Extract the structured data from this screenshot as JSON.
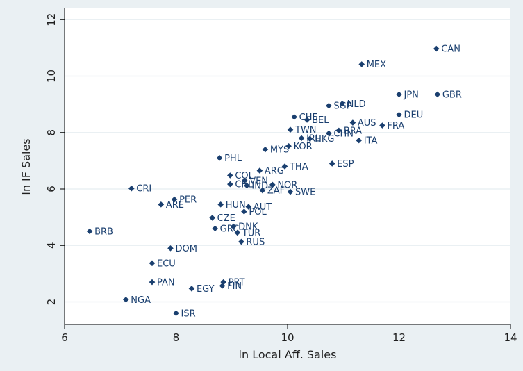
{
  "chart_data": {
    "type": "scatter",
    "xlabel": "ln Local Aff. Sales",
    "ylabel": "ln IF Sales",
    "xlim": [
      6,
      14
    ],
    "ylim": [
      1.2,
      12.4
    ],
    "xticks": [
      "6",
      "8",
      "10",
      "12",
      "14"
    ],
    "yticks": [
      "2",
      "4",
      "6",
      "8",
      "10",
      "12"
    ],
    "grid": "horizontal",
    "colors": {
      "marker": "#1a3f6f",
      "plot_background": "#ffffff",
      "page_background": "#eaf0f3"
    },
    "points": [
      {
        "label": "CAN",
        "x": 12.67,
        "y": 10.97
      },
      {
        "label": "MEX",
        "x": 11.33,
        "y": 10.42
      },
      {
        "label": "JPN",
        "x": 12.0,
        "y": 9.35
      },
      {
        "label": "GBR",
        "x": 12.69,
        "y": 9.35
      },
      {
        "label": "NLD",
        "x": 10.98,
        "y": 9.02
      },
      {
        "label": "SGP",
        "x": 10.74,
        "y": 8.95
      },
      {
        "label": "DEU",
        "x": 12.0,
        "y": 8.63
      },
      {
        "label": "CHE",
        "x": 10.12,
        "y": 8.55
      },
      {
        "label": "BEL",
        "x": 10.35,
        "y": 8.45
      },
      {
        "label": "AUS",
        "x": 11.17,
        "y": 8.35
      },
      {
        "label": "FRA",
        "x": 11.7,
        "y": 8.25
      },
      {
        "label": "TWN",
        "x": 10.05,
        "y": 8.1
      },
      {
        "label": "BRA",
        "x": 10.92,
        "y": 8.07
      },
      {
        "label": "CHN",
        "x": 10.74,
        "y": 7.97
      },
      {
        "label": "IRL",
        "x": 10.25,
        "y": 7.8
      },
      {
        "label": "HKG",
        "x": 10.4,
        "y": 7.78
      },
      {
        "label": "ITA",
        "x": 11.28,
        "y": 7.72
      },
      {
        "label": "KOR",
        "x": 10.02,
        "y": 7.52
      },
      {
        "label": "MYS",
        "x": 9.6,
        "y": 7.4
      },
      {
        "label": "PHL",
        "x": 8.78,
        "y": 7.1
      },
      {
        "label": "ESP",
        "x": 10.8,
        "y": 6.9
      },
      {
        "label": "THA",
        "x": 9.95,
        "y": 6.8
      },
      {
        "label": "ARG",
        "x": 9.5,
        "y": 6.65
      },
      {
        "label": "COL",
        "x": 8.97,
        "y": 6.48
      },
      {
        "label": "VEN",
        "x": 9.23,
        "y": 6.3
      },
      {
        "label": "CHL",
        "x": 8.97,
        "y": 6.17
      },
      {
        "label": "IND",
        "x": 9.27,
        "y": 6.12
      },
      {
        "label": "NOR",
        "x": 9.73,
        "y": 6.15
      },
      {
        "label": "ZAF",
        "x": 9.55,
        "y": 5.95
      },
      {
        "label": "SWE",
        "x": 10.05,
        "y": 5.9
      },
      {
        "label": "CRI",
        "x": 7.2,
        "y": 6.02
      },
      {
        "label": "PER",
        "x": 7.97,
        "y": 5.63
      },
      {
        "label": "ARE",
        "x": 7.73,
        "y": 5.45
      },
      {
        "label": "HUN",
        "x": 8.8,
        "y": 5.45
      },
      {
        "label": "AUT",
        "x": 9.3,
        "y": 5.37
      },
      {
        "label": "POL",
        "x": 9.22,
        "y": 5.2
      },
      {
        "label": "CZE",
        "x": 8.65,
        "y": 4.98
      },
      {
        "label": "DNK",
        "x": 9.03,
        "y": 4.67
      },
      {
        "label": "GRC",
        "x": 8.7,
        "y": 4.6
      },
      {
        "label": "TUR",
        "x": 9.1,
        "y": 4.45
      },
      {
        "label": "RUS",
        "x": 9.17,
        "y": 4.13
      },
      {
        "label": "BRB",
        "x": 6.45,
        "y": 4.5
      },
      {
        "label": "DOM",
        "x": 7.9,
        "y": 3.9
      },
      {
        "label": "ECU",
        "x": 7.57,
        "y": 3.37
      },
      {
        "label": "PAN",
        "x": 7.57,
        "y": 2.7
      },
      {
        "label": "PRT",
        "x": 8.85,
        "y": 2.7
      },
      {
        "label": "FIN",
        "x": 8.83,
        "y": 2.57
      },
      {
        "label": "EGY",
        "x": 8.28,
        "y": 2.47
      },
      {
        "label": "NGA",
        "x": 7.1,
        "y": 2.08
      },
      {
        "label": "ISR",
        "x": 8.0,
        "y": 1.6
      }
    ]
  }
}
